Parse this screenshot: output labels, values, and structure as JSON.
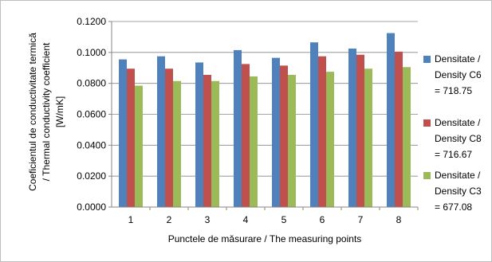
{
  "chart_data": {
    "type": "bar",
    "title": "",
    "xlabel": "Punctele de măsurare / The measuring points",
    "ylabel_lines": [
      "Coeficientul de conductivitate termică",
      "/ Thermal conductivity coefficient",
      "[W/mK]"
    ],
    "ylim": [
      0,
      0.12
    ],
    "yticks": [
      "0.0000",
      "0.0200",
      "0.0400",
      "0.0600",
      "0.0800",
      "0.1000",
      "0.1200"
    ],
    "ytick_values": [
      0,
      0.02,
      0.04,
      0.06,
      0.08,
      0.1,
      0.12
    ],
    "categories": [
      "1",
      "2",
      "3",
      "4",
      "5",
      "6",
      "7",
      "8"
    ],
    "grid": true,
    "legend_position": "right",
    "series": [
      {
        "name_lines": [
          "Densitate /",
          "Density C6",
          "= 718.75"
        ],
        "color": "#4f81bd",
        "values": [
          0.0955,
          0.0975,
          0.0935,
          0.1015,
          0.0965,
          0.1065,
          0.1025,
          0.1125
        ]
      },
      {
        "name_lines": [
          "Densitate /",
          "Density C8",
          "= 716.67"
        ],
        "color": "#c0504d",
        "values": [
          0.0895,
          0.0895,
          0.0855,
          0.0925,
          0.0915,
          0.0975,
          0.0985,
          0.1005
        ]
      },
      {
        "name_lines": [
          "Densitate /",
          "Density C3",
          "= 677.08"
        ],
        "color": "#9bbb59",
        "values": [
          0.0785,
          0.0815,
          0.0815,
          0.0845,
          0.0855,
          0.0875,
          0.0895,
          0.0905
        ]
      }
    ]
  }
}
